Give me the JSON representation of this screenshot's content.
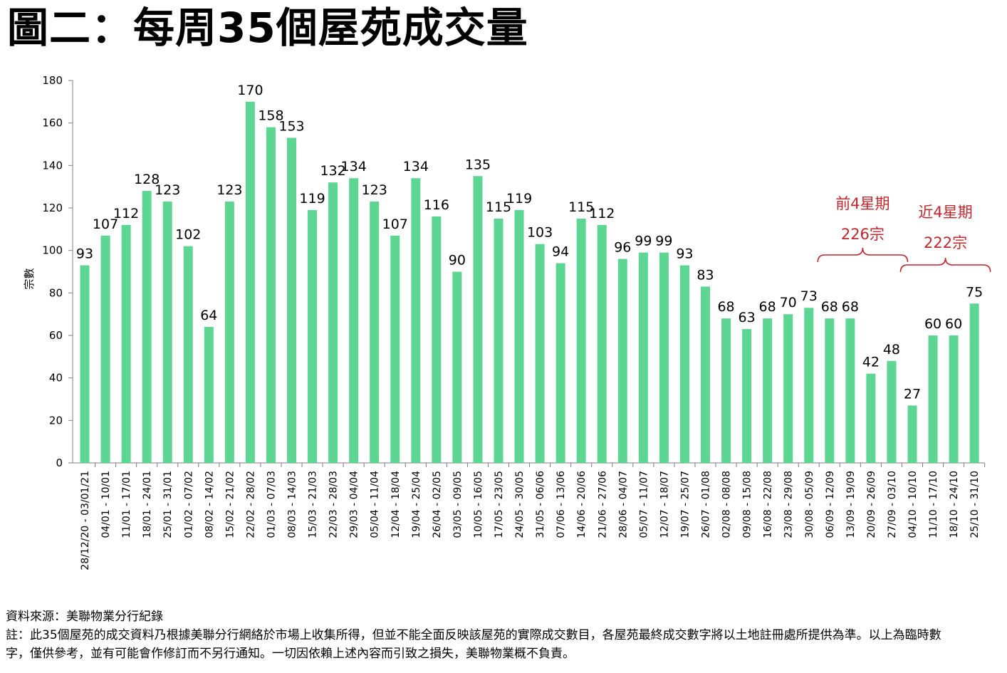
{
  "title": "圖二：每周35個屋苑成交量",
  "source": "資料來源：美聯物業分行紀錄",
  "note": "註：此35個屋苑的成交資料乃根據美聯分行網絡於市場上收集所得，但並不能全面反映該屋苑的實際成交數目，各屋苑最終成交數字將以土地註冊處所提供為準。以上為臨時數字，僅供參考，並有可能會作修訂而不另行通知。一切因依賴上述內容而引致之損失，美聯物業概不負責。",
  "colors": {
    "bar": "#5dd693",
    "annotation": "#c0272d",
    "axis": "#7f7f7f"
  },
  "chart_data": {
    "type": "bar",
    "ylabel": "宗數",
    "xlabel": "",
    "ylim": [
      0,
      180
    ],
    "yticks": [
      0,
      20,
      40,
      60,
      80,
      100,
      120,
      140,
      160,
      180
    ],
    "categories": [
      "28/12/20 - 03/01/21",
      "04/01 - 10/01",
      "11/01 - 17/01",
      "18/01 - 24/01",
      "25/01 - 31/01",
      "01/02 - 07/02",
      "08/02 - 14/02",
      "15/02 - 21/02",
      "22/02 - 28/02",
      "01/03 - 07/03",
      "08/03 - 14/03",
      "15/03 - 21/03",
      "22/03 - 28/03",
      "29/03 - 04/04",
      "05/04 - 11/04",
      "12/04 - 18/04",
      "19/04 - 25/04",
      "26/04 - 02/05",
      "03/05 - 09/05",
      "10/05 - 16/05",
      "17/05 - 23/05",
      "24/05 - 30/05",
      "31/05 - 06/06",
      "07/06 - 13/06",
      "14/06 - 20/06",
      "21/06 - 27/06",
      "28/06 - 04/07",
      "05/07 - 11/07",
      "12/07 - 18/07",
      "19/07 - 25/07",
      "26/07 - 01/08",
      "02/08 - 08/08",
      "09/08 - 15/08",
      "16/08 - 22/08",
      "23/08 - 29/08",
      "30/08 - 05/09",
      "06/09 - 12/09",
      "13/09 - 19/09",
      "20/09 - 26/09",
      "27/09 - 03/10",
      "04/10 - 10/10",
      "11/10 - 17/10",
      "18/10 - 24/10",
      "25/10 - 31/10"
    ],
    "values": [
      93,
      107,
      112,
      128,
      123,
      102,
      64,
      123,
      170,
      158,
      153,
      119,
      132,
      134,
      123,
      107,
      134,
      116,
      90,
      135,
      115,
      119,
      103,
      94,
      115,
      112,
      96,
      99,
      99,
      93,
      83,
      68,
      63,
      68,
      70,
      73,
      68,
      68,
      42,
      48,
      27,
      60,
      60,
      75
    ],
    "annotations": [
      {
        "line1": "前4星期",
        "line2": "226宗",
        "from_index": 36,
        "to_index": 39
      },
      {
        "line1": "近4星期",
        "line2": "222宗",
        "from_index": 40,
        "to_index": 43
      }
    ]
  }
}
